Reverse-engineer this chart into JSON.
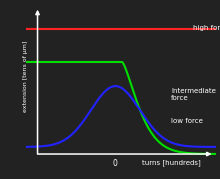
{
  "background_color": "#222222",
  "text_color": "#ffffff",
  "axis_color": "#ffffff",
  "red_color": "#ff2222",
  "green_color": "#00dd00",
  "blue_color": "#2222ff",
  "high_force_label": "high force",
  "intermediate_force_label": "Intermediate\nforce",
  "low_force_label": "low force",
  "xlabel": "turns [hundreds]",
  "ylabel": "extension [tens of μm]",
  "x_origin_label": "0",
  "xlim": [
    -4.0,
    4.5
  ],
  "ylim": [
    -0.5,
    10.5
  ],
  "high_force_y": 8.8,
  "intermediate_flat_y": 6.5,
  "intermediate_drop_start": 0.3,
  "low_peak_y": 4.8,
  "low_base_y": 0.5,
  "low_sigma": 1.1,
  "intermediate_decay": 1.0,
  "x_axis_y": 0.0,
  "y_axis_x": -3.5
}
